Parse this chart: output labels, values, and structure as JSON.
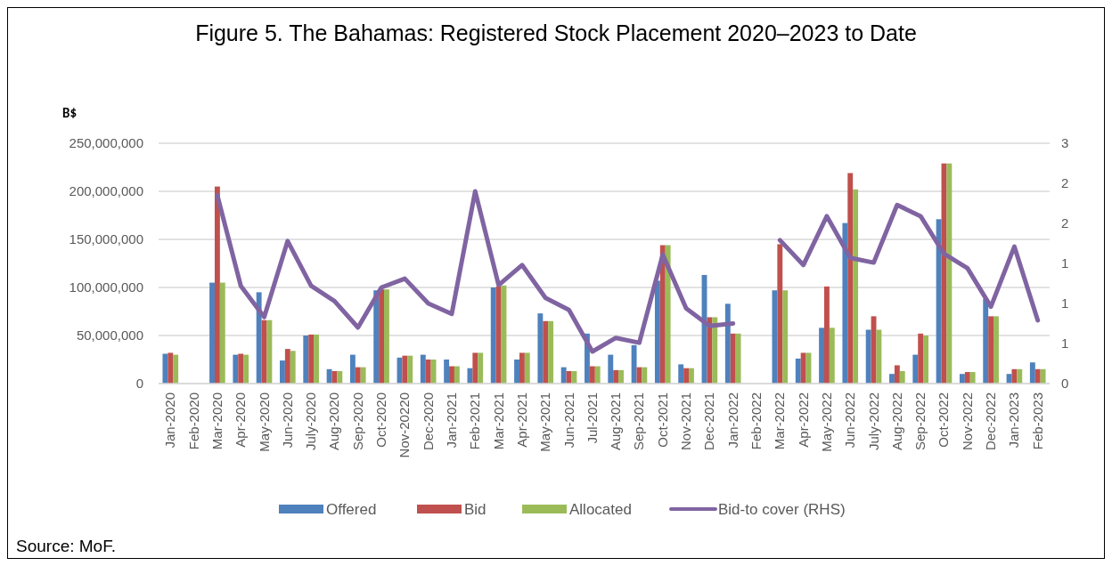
{
  "chart_data": {
    "type": "bar",
    "title": "Figure 5. The Bahamas: Registered Stock Placement 2020–2023 to Date",
    "ylabel": "B$",
    "annotations": [
      "Source: MoF."
    ],
    "categories": [
      "Jan-2020",
      "Feb-2020",
      "Mar-2020",
      "Apr-2020",
      "May-2020",
      "Jun-2020",
      "July-2020",
      "Aug-2020",
      "Sep-2020",
      "Oct-2020",
      "Nov-20220",
      "Dec-2020",
      "Jan-2021",
      "Feb-2021",
      "Mar-2021",
      "Apr-2021",
      "May-2021",
      "Jun-2021",
      "Jul-2021",
      "Aug-2021",
      "Sep-2021",
      "Oct-2021",
      "Nov-2021",
      "Dec-2021",
      "Jan-2022",
      "Feb-2022",
      "Mar-2022",
      "Apr-2022",
      "May-2022",
      "Jun-2022",
      "July-2022",
      "Aug-2022",
      "Sep-2022",
      "Oct-2022",
      "Nov-2022",
      "Dec-2022",
      "Jan-2023",
      "Feb-2023"
    ],
    "series": [
      {
        "name": "Offered",
        "color": "#4f81bd",
        "values": [
          31000000,
          null,
          105000000,
          30000000,
          95000000,
          24000000,
          50000000,
          15000000,
          30000000,
          97000000,
          27000000,
          30000000,
          25000000,
          16000000,
          100000000,
          25000000,
          73000000,
          17000000,
          52000000,
          30000000,
          40000000,
          107000000,
          20000000,
          113000000,
          83000000,
          null,
          97000000,
          26000000,
          58000000,
          167000000,
          56000000,
          10000000,
          30000000,
          171000000,
          10000000,
          88000000,
          10000000,
          22000000
        ]
      },
      {
        "name": "Bid",
        "color": "#c0504d",
        "values": [
          32000000,
          null,
          205000000,
          31000000,
          66000000,
          36000000,
          51000000,
          13000000,
          17000000,
          98000000,
          29000000,
          25000000,
          18000000,
          32000000,
          101000000,
          32000000,
          65000000,
          13000000,
          18000000,
          14000000,
          17000000,
          144000000,
          16000000,
          69000000,
          52000000,
          null,
          145000000,
          32000000,
          101000000,
          219000000,
          70000000,
          19000000,
          52000000,
          229000000,
          12000000,
          70000000,
          15000000,
          15000000
        ]
      },
      {
        "name": "Allocated",
        "color": "#9bbb59",
        "values": [
          30000000,
          null,
          105000000,
          30000000,
          66000000,
          34000000,
          51000000,
          13000000,
          17000000,
          98000000,
          29000000,
          25000000,
          18000000,
          32000000,
          102000000,
          32000000,
          65000000,
          13000000,
          18000000,
          14000000,
          17000000,
          144000000,
          16000000,
          69000000,
          52000000,
          null,
          97000000,
          32000000,
          58000000,
          202000000,
          56000000,
          13000000,
          50000000,
          229000000,
          12000000,
          70000000,
          15000000,
          15000000
        ]
      },
      {
        "name": "Bid-to cover (RHS)",
        "type": "line",
        "axis": "y2",
        "color": "#8064a2",
        "values": [
          null,
          null,
          2.35,
          1.22,
          0.83,
          1.78,
          1.22,
          1.03,
          0.7,
          1.2,
          1.31,
          1.0,
          0.87,
          2.4,
          1.23,
          1.48,
          1.07,
          0.92,
          0.4,
          0.57,
          0.51,
          1.61,
          0.94,
          0.72,
          0.75,
          null,
          1.79,
          1.48,
          2.09,
          1.57,
          1.51,
          2.23,
          2.09,
          1.62,
          1.44,
          0.96,
          1.71,
          0.79
        ]
      }
    ],
    "ylim": [
      0,
      250000000
    ],
    "yticks": [
      {
        "value": 0,
        "label": "0"
      },
      {
        "value": 50000000,
        "label": "50,000,000"
      },
      {
        "value": 100000000,
        "label": "100,000,000"
      },
      {
        "value": 150000000,
        "label": "150,000,000"
      },
      {
        "value": 200000000,
        "label": "200,000,000"
      },
      {
        "value": 250000000,
        "label": "250,000,000"
      }
    ],
    "y2lim": [
      0,
      3
    ],
    "y2ticks": [
      0,
      {
        "value": 0.5,
        "label": "1"
      },
      1,
      {
        "value": 1.5,
        "label": "1"
      },
      {
        "value": 2,
        "label": "2"
      },
      {
        "value": 2.5,
        "label": "2"
      },
      3
    ],
    "grid": "y",
    "legend": "bottom",
    "line_style": "solid",
    "marker": "none"
  }
}
